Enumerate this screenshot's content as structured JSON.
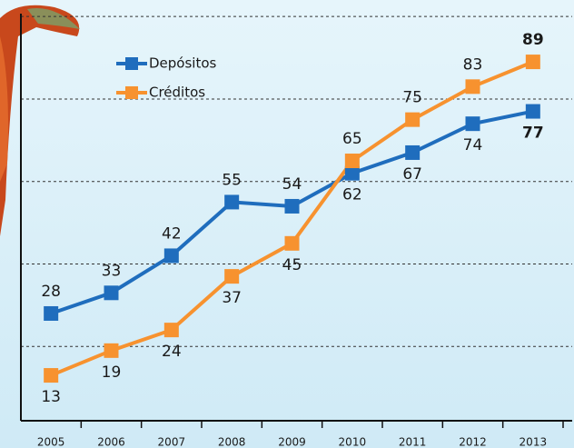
{
  "chart_data": {
    "type": "line",
    "categories": [
      "2005",
      "2006",
      "2007",
      "2008",
      "2009",
      "2010",
      "2011",
      "2012",
      "2013"
    ],
    "series": [
      {
        "name": "Depósitos",
        "color": "#1f6dbd",
        "values": [
          28,
          33,
          42,
          55,
          54,
          62,
          67,
          74,
          77
        ]
      },
      {
        "name": "Créditos",
        "color": "#f7922f",
        "values": [
          13,
          19,
          24,
          37,
          45,
          65,
          75,
          83,
          89
        ]
      }
    ],
    "ylim": [
      2,
      104
    ],
    "yticks": [
      20,
      40,
      60,
      80,
      100
    ],
    "grid": true,
    "legend": "top-left"
  }
}
